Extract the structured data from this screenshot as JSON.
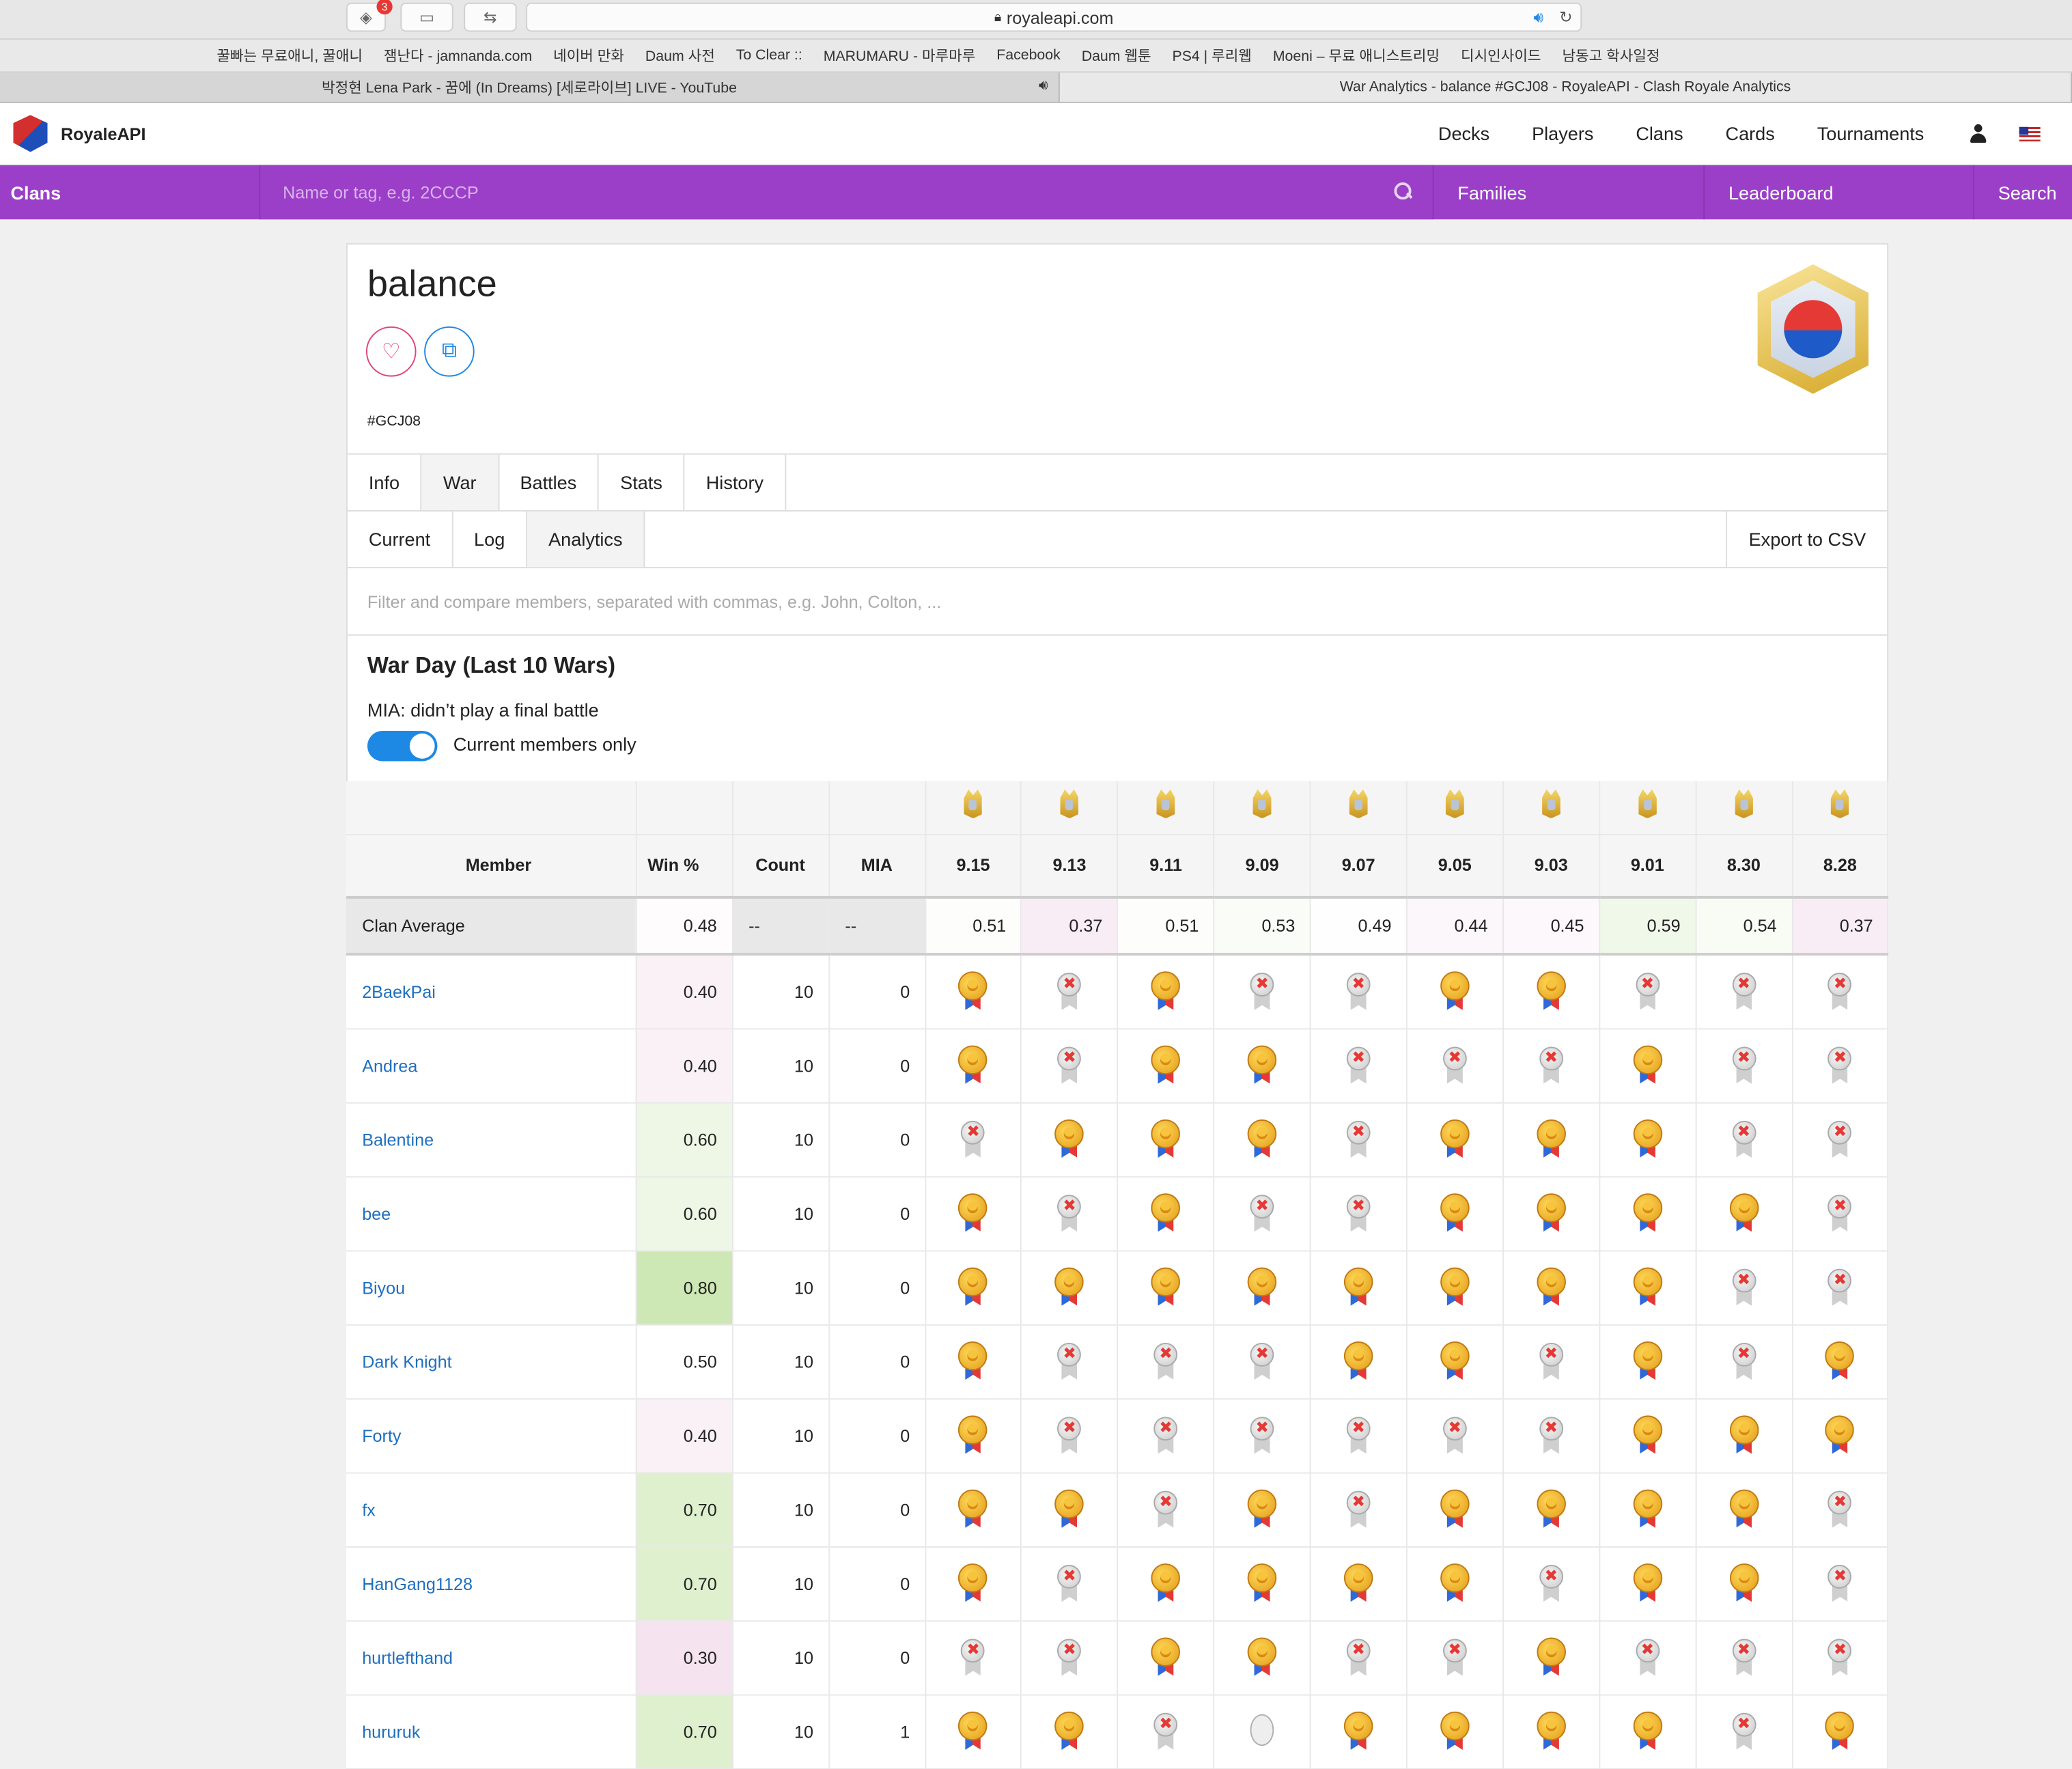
{
  "browser": {
    "url": "royaleapi.com",
    "ext_badge": "3",
    "bookmarks": [
      "꿀빠는 무료애니, 꿀애니",
      "잼난다 - jamnanda.com",
      "네이버 만화",
      "Daum 사전",
      "To Clear ::",
      "MARUMARU - 마루마루",
      "Facebook",
      "Daum 웹툰",
      "PS4 | 루리웹",
      "Moeni – 무료 애니스트리밍",
      "디시인사이드",
      "남동고 학사일정"
    ],
    "tabs": [
      {
        "title": "박정현 Lena Park - 꿈에 (In Dreams) [세로라이브] LIVE - YouTube"
      },
      {
        "title": "War Analytics - balance #GCJ08 - RoyaleAPI - Clash Royale Analytics"
      }
    ]
  },
  "site": {
    "brand": "RoyaleAPI",
    "nav": [
      "Decks",
      "Players",
      "Clans",
      "Cards",
      "Tournaments"
    ]
  },
  "subnav": {
    "title": "Clans",
    "search_placeholder": "Name or tag, e.g. 2CCCP",
    "families": "Families",
    "leaderboard": "Leaderboard",
    "search": "Search"
  },
  "clan": {
    "name": "balance",
    "tag": "#GCJ08",
    "tabs": [
      "Info",
      "War",
      "Battles",
      "Stats",
      "History"
    ],
    "subtabs": [
      "Current",
      "Log",
      "Analytics"
    ],
    "export": "Export to CSV",
    "filter_placeholder": "Filter and compare members, separated with commas, e.g. John, Colton, ...",
    "section_title": "War Day (Last 10 Wars)",
    "mia_note": "MIA: didn’t play a final battle",
    "toggle_label": "Current members only"
  },
  "table": {
    "headers": {
      "member": "Member",
      "win": "Win %",
      "count": "Count",
      "mia": "MIA"
    },
    "dates": [
      "9.15",
      "9.13",
      "9.11",
      "9.09",
      "9.07",
      "9.05",
      "9.03",
      "9.01",
      "8.30",
      "8.28"
    ],
    "average": {
      "label": "Clan Average",
      "win": "0.48",
      "count": "--",
      "mia": "--",
      "values": [
        "0.51",
        "0.37",
        "0.51",
        "0.53",
        "0.49",
        "0.44",
        "0.45",
        "0.59",
        "0.54",
        "0.37"
      ]
    },
    "rows": [
      {
        "name": "2BaekPai",
        "win": "0.40",
        "count": "10",
        "mia": "0",
        "results": [
          "W",
          "L",
          "W",
          "L",
          "L",
          "W",
          "W",
          "L",
          "L",
          "L"
        ]
      },
      {
        "name": "Andrea",
        "win": "0.40",
        "count": "10",
        "mia": "0",
        "results": [
          "W",
          "L",
          "W",
          "W",
          "L",
          "L",
          "L",
          "W",
          "L",
          "L"
        ]
      },
      {
        "name": "Balentine",
        "win": "0.60",
        "count": "10",
        "mia": "0",
        "results": [
          "L",
          "W",
          "W",
          "W",
          "L",
          "W",
          "W",
          "W",
          "L",
          "L"
        ]
      },
      {
        "name": "bee",
        "win": "0.60",
        "count": "10",
        "mia": "0",
        "results": [
          "W",
          "L",
          "W",
          "L",
          "L",
          "W",
          "W",
          "W",
          "W",
          "L"
        ]
      },
      {
        "name": "Biyou",
        "win": "0.80",
        "count": "10",
        "mia": "0",
        "results": [
          "W",
          "W",
          "W",
          "W",
          "W",
          "W",
          "W",
          "W",
          "L",
          "L"
        ]
      },
      {
        "name": "Dark Knight",
        "win": "0.50",
        "count": "10",
        "mia": "0",
        "results": [
          "W",
          "L",
          "L",
          "L",
          "W",
          "W",
          "L",
          "W",
          "L",
          "W"
        ]
      },
      {
        "name": "Forty",
        "win": "0.40",
        "count": "10",
        "mia": "0",
        "results": [
          "W",
          "L",
          "L",
          "L",
          "L",
          "L",
          "L",
          "W",
          "W",
          "W"
        ]
      },
      {
        "name": "fx",
        "win": "0.70",
        "count": "10",
        "mia": "0",
        "results": [
          "W",
          "W",
          "L",
          "W",
          "L",
          "W",
          "W",
          "W",
          "W",
          "L"
        ]
      },
      {
        "name": "HanGang1128",
        "win": "0.70",
        "count": "10",
        "mia": "0",
        "results": [
          "W",
          "L",
          "W",
          "W",
          "W",
          "W",
          "L",
          "W",
          "W",
          "L"
        ]
      },
      {
        "name": "hurtlefthand",
        "win": "0.30",
        "count": "10",
        "mia": "0",
        "results": [
          "L",
          "L",
          "W",
          "W",
          "L",
          "L",
          "W",
          "L",
          "L",
          "L"
        ]
      },
      {
        "name": "hururuk",
        "win": "0.70",
        "count": "10",
        "mia": "1",
        "results": [
          "W",
          "W",
          "L",
          "M",
          "W",
          "W",
          "W",
          "W",
          "L",
          "W"
        ]
      }
    ]
  },
  "colors": {
    "purple": "#9b3fc8",
    "link": "#1e6fbf",
    "toggle": "#1e88e5",
    "heat_low": "#f6e4f0",
    "heat_high": "#d7ecc0"
  }
}
